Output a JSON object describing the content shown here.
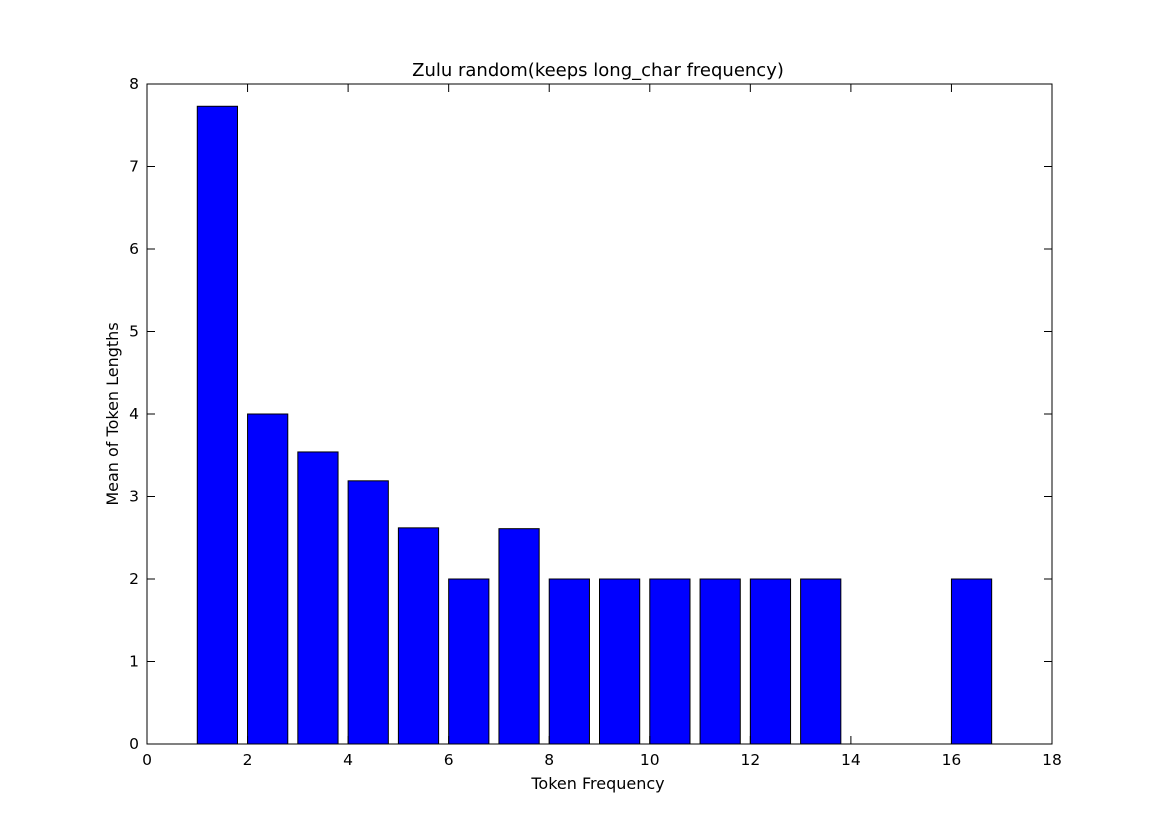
{
  "chart_data": {
    "type": "bar",
    "title": "Zulu random(keeps long_char frequency)",
    "xlabel": "Token Frequency",
    "ylabel": "Mean of Token Lengths",
    "x": [
      1,
      2,
      3,
      4,
      5,
      6,
      7,
      8,
      9,
      10,
      11,
      12,
      13,
      16
    ],
    "values": [
      7.73,
      4.0,
      3.54,
      3.19,
      2.62,
      2.0,
      2.61,
      2.0,
      2.0,
      2.0,
      2.0,
      2.0,
      2.0,
      2.0
    ],
    "bar_width": 0.8,
    "xlim": [
      0,
      18
    ],
    "ylim": [
      0,
      8
    ],
    "xticks": [
      0,
      2,
      4,
      6,
      8,
      10,
      12,
      14,
      16,
      18
    ],
    "yticks": [
      0,
      1,
      2,
      3,
      4,
      5,
      6,
      7,
      8
    ],
    "grid": false,
    "legend": "none",
    "colors": {
      "bar_fill": "#0000ff",
      "bar_edge": "#000000",
      "axes": "#000000",
      "background": "#ffffff"
    }
  }
}
